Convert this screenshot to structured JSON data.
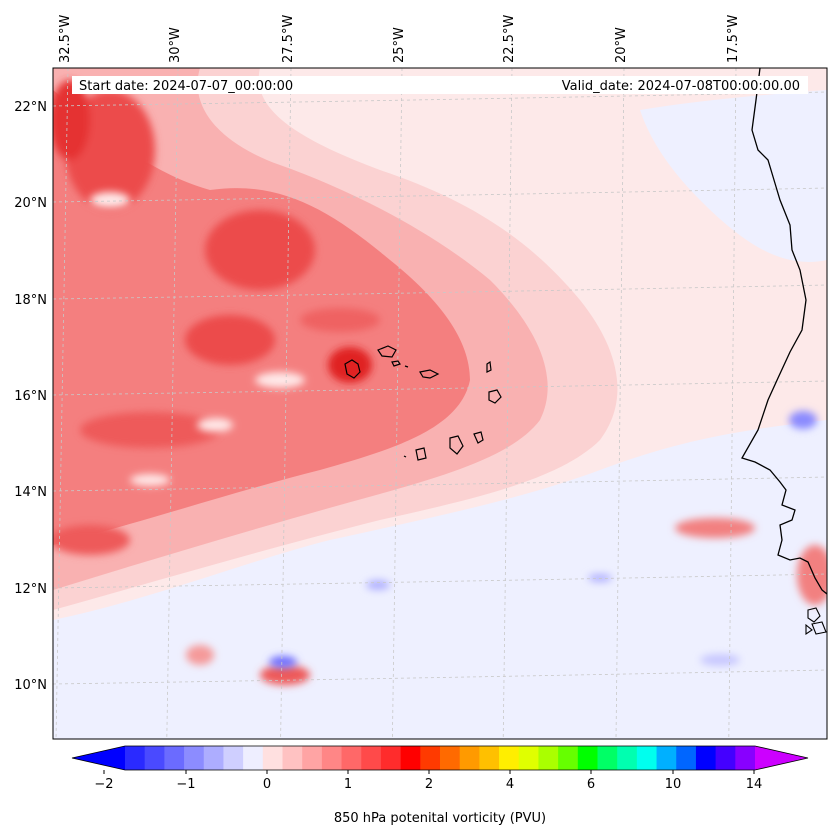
{
  "map": {
    "header_left": "Start date: 2024-07-07_00:00:00",
    "header_right": "Valid_date: 2024-07-08T00:00:00.00",
    "lon_labels": [
      "32.5°W",
      "30°W",
      "27.5°W",
      "25°W",
      "22.5°W",
      "20°W",
      "17.5°W"
    ],
    "lat_labels": [
      "22°N",
      "20°N",
      "18°N",
      "16°N",
      "14°N",
      "12°N",
      "10°N"
    ],
    "extent": {
      "lon_min": -33.0,
      "lon_max": -15.5,
      "lat_min": 8.9,
      "lat_max": 22.8
    },
    "colors": {
      "background_pv": "#fde7e7",
      "pv_low": "#f3d2d2",
      "pv_mid": "#f5a0a0",
      "pv_high": "#ee5555",
      "pv_max": "#e32222",
      "pv_negative": "#ececff",
      "pv_neg_strong": "#7a7aff",
      "coastline": "#000000",
      "grid": "#c8c8c8"
    }
  },
  "colorbar": {
    "label": "850 hPa potenital vorticity (PVU)",
    "ticks": [
      "−2",
      "−1",
      "0",
      "1",
      "2",
      "4",
      "6",
      "10",
      "14"
    ],
    "colors": [
      "#0000ff",
      "#2a2aff",
      "#4a4aff",
      "#6b6bff",
      "#8c8cff",
      "#adadff",
      "#cfcfff",
      "#eeeeff",
      "#ffe0e0",
      "#ffc2c2",
      "#ffa4a4",
      "#ff8686",
      "#ff6868",
      "#ff4a4a",
      "#ff2c2c",
      "#ff0000",
      "#ff3a00",
      "#ff6a00",
      "#ff9a00",
      "#ffc000",
      "#ffee00",
      "#e0ff00",
      "#aaff00",
      "#66ff00",
      "#00ff00",
      "#00ff66",
      "#00ffb0",
      "#00ffee",
      "#00b0ff",
      "#0066ff",
      "#0000ff",
      "#4400ff",
      "#8800ff",
      "#cc00ff"
    ]
  }
}
